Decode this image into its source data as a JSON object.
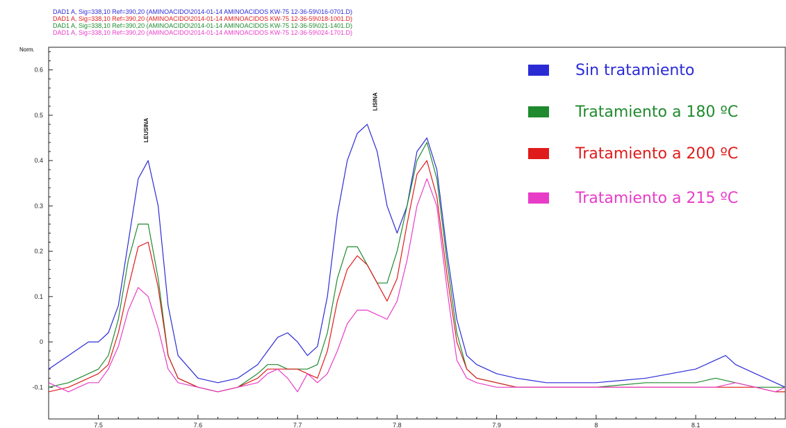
{
  "header_lines": [
    {
      "text": "DAD1 A, Sig=338,10 Ref=390,20 (AMINOACIDO\\2014-01-14 AMINOACIDOS KW-75 12-36-59\\016-0701.D)",
      "color": "#2b2bd6"
    },
    {
      "text": "DAD1 A, Sig=338,10 Ref=390,20 (AMINOACIDO\\2014-01-14 AMINOACIDOS KW-75 12-36-59\\018-1001.D)",
      "color": "#e01b1b"
    },
    {
      "text": "DAD1 A, Sig=338,10 Ref=390,20 (AMINOACIDO\\2014-01-14 AMINOACIDOS KW-75 12-36-59\\021-1401.D)",
      "color": "#1f8a2e"
    },
    {
      "text": "DAD1 A, Sig=338,10 Ref=390,20 (AMINOACIDO\\2014-01-14 AMINOACIDOS KW-75 12-36-59\\024-1701.D)",
      "color": "#e83cc8"
    }
  ],
  "chart_data": {
    "type": "line",
    "ylabel": "Norm.",
    "xlabel": "",
    "xlim": [
      7.45,
      8.19
    ],
    "ylim": [
      -0.17,
      0.65
    ],
    "x_ticks": [
      "7.5",
      "7.6",
      "7.7",
      "7.8",
      "7.9",
      "8",
      "8.1"
    ],
    "y_ticks": [
      "-0.1",
      "0",
      "0.1",
      "0.2",
      "0.3",
      "0.4",
      "0.5",
      "0.6"
    ],
    "annotations": [
      {
        "text": "LEUSINA",
        "x": 7.55,
        "y": 0.44
      },
      {
        "text": "LISINA",
        "x": 7.78,
        "y": 0.51
      }
    ],
    "series": [
      {
        "name": "Sin tratamiento",
        "color": "#2b2bd6",
        "x": [
          7.45,
          7.47,
          7.49,
          7.5,
          7.51,
          7.52,
          7.53,
          7.54,
          7.55,
          7.56,
          7.57,
          7.58,
          7.6,
          7.62,
          7.64,
          7.66,
          7.67,
          7.68,
          7.69,
          7.7,
          7.71,
          7.72,
          7.73,
          7.74,
          7.75,
          7.76,
          7.77,
          7.78,
          7.79,
          7.8,
          7.81,
          7.82,
          7.83,
          7.84,
          7.85,
          7.86,
          7.87,
          7.88,
          7.9,
          7.92,
          7.95,
          8.0,
          8.05,
          8.1,
          8.12,
          8.13,
          8.14,
          8.16,
          8.18,
          8.19
        ],
        "y": [
          -0.06,
          -0.03,
          0.0,
          0.0,
          0.02,
          0.08,
          0.22,
          0.36,
          0.4,
          0.3,
          0.08,
          -0.03,
          -0.08,
          -0.09,
          -0.08,
          -0.05,
          -0.02,
          0.01,
          0.02,
          0.0,
          -0.03,
          -0.01,
          0.1,
          0.28,
          0.4,
          0.46,
          0.48,
          0.42,
          0.3,
          0.24,
          0.3,
          0.42,
          0.45,
          0.38,
          0.2,
          0.05,
          -0.03,
          -0.05,
          -0.07,
          -0.08,
          -0.09,
          -0.09,
          -0.08,
          -0.06,
          -0.04,
          -0.03,
          -0.05,
          -0.07,
          -0.09,
          -0.1
        ]
      },
      {
        "name": "Tratamiento a 180 ºC",
        "color": "#1f8a2e",
        "x": [
          7.45,
          7.47,
          7.49,
          7.5,
          7.51,
          7.52,
          7.53,
          7.54,
          7.55,
          7.56,
          7.57,
          7.58,
          7.6,
          7.62,
          7.64,
          7.66,
          7.67,
          7.68,
          7.69,
          7.7,
          7.71,
          7.72,
          7.73,
          7.74,
          7.75,
          7.76,
          7.77,
          7.78,
          7.79,
          7.8,
          7.81,
          7.82,
          7.83,
          7.84,
          7.85,
          7.86,
          7.87,
          7.88,
          7.9,
          7.92,
          7.95,
          8.0,
          8.05,
          8.1,
          8.12,
          8.14,
          8.16,
          8.18,
          8.19
        ],
        "y": [
          -0.1,
          -0.09,
          -0.07,
          -0.06,
          -0.03,
          0.05,
          0.18,
          0.26,
          0.26,
          0.14,
          -0.03,
          -0.08,
          -0.1,
          -0.11,
          -0.1,
          -0.07,
          -0.05,
          -0.05,
          -0.06,
          -0.06,
          -0.06,
          -0.05,
          0.02,
          0.14,
          0.21,
          0.21,
          0.17,
          0.13,
          0.13,
          0.2,
          0.3,
          0.4,
          0.44,
          0.36,
          0.18,
          0.02,
          -0.06,
          -0.08,
          -0.09,
          -0.1,
          -0.1,
          -0.1,
          -0.09,
          -0.09,
          -0.08,
          -0.09,
          -0.1,
          -0.1,
          -0.1
        ]
      },
      {
        "name": "Tratamiento a 200 ºC",
        "color": "#e01b1b",
        "x": [
          7.45,
          7.47,
          7.49,
          7.5,
          7.51,
          7.52,
          7.53,
          7.54,
          7.55,
          7.56,
          7.57,
          7.58,
          7.6,
          7.62,
          7.64,
          7.66,
          7.67,
          7.68,
          7.69,
          7.7,
          7.71,
          7.72,
          7.73,
          7.74,
          7.75,
          7.76,
          7.77,
          7.78,
          7.79,
          7.8,
          7.81,
          7.82,
          7.83,
          7.84,
          7.85,
          7.86,
          7.87,
          7.88,
          7.9,
          7.92,
          7.95,
          8.0,
          8.05,
          8.1,
          8.12,
          8.14,
          8.16,
          8.18,
          8.19
        ],
        "y": [
          -0.11,
          -0.1,
          -0.08,
          -0.07,
          -0.05,
          0.02,
          0.12,
          0.21,
          0.22,
          0.12,
          -0.03,
          -0.08,
          -0.1,
          -0.11,
          -0.1,
          -0.08,
          -0.06,
          -0.06,
          -0.06,
          -0.06,
          -0.07,
          -0.08,
          -0.02,
          0.09,
          0.16,
          0.19,
          0.17,
          0.13,
          0.09,
          0.14,
          0.26,
          0.37,
          0.4,
          0.32,
          0.15,
          0.0,
          -0.06,
          -0.08,
          -0.09,
          -0.1,
          -0.1,
          -0.1,
          -0.1,
          -0.1,
          -0.1,
          -0.1,
          -0.1,
          -0.11,
          -0.11
        ]
      },
      {
        "name": "Tratamiento a 215 ºC",
        "color": "#e83cc8",
        "x": [
          7.45,
          7.47,
          7.49,
          7.5,
          7.51,
          7.52,
          7.53,
          7.54,
          7.55,
          7.56,
          7.57,
          7.58,
          7.6,
          7.62,
          7.64,
          7.66,
          7.67,
          7.68,
          7.69,
          7.7,
          7.71,
          7.72,
          7.73,
          7.74,
          7.75,
          7.76,
          7.77,
          7.78,
          7.79,
          7.8,
          7.81,
          7.82,
          7.83,
          7.84,
          7.85,
          7.86,
          7.87,
          7.88,
          7.9,
          7.92,
          7.95,
          8.0,
          8.05,
          8.1,
          8.12,
          8.14,
          8.16,
          8.18,
          8.19
        ],
        "y": [
          -0.09,
          -0.11,
          -0.09,
          -0.09,
          -0.06,
          -0.01,
          0.07,
          0.12,
          0.1,
          0.03,
          -0.06,
          -0.09,
          -0.1,
          -0.11,
          -0.1,
          -0.09,
          -0.07,
          -0.06,
          -0.08,
          -0.11,
          -0.07,
          -0.09,
          -0.07,
          -0.02,
          0.04,
          0.07,
          0.07,
          0.06,
          0.05,
          0.09,
          0.18,
          0.3,
          0.36,
          0.3,
          0.12,
          -0.04,
          -0.08,
          -0.09,
          -0.1,
          -0.1,
          -0.1,
          -0.1,
          -0.1,
          -0.1,
          -0.1,
          -0.09,
          -0.1,
          -0.11,
          -0.1
        ]
      }
    ]
  }
}
